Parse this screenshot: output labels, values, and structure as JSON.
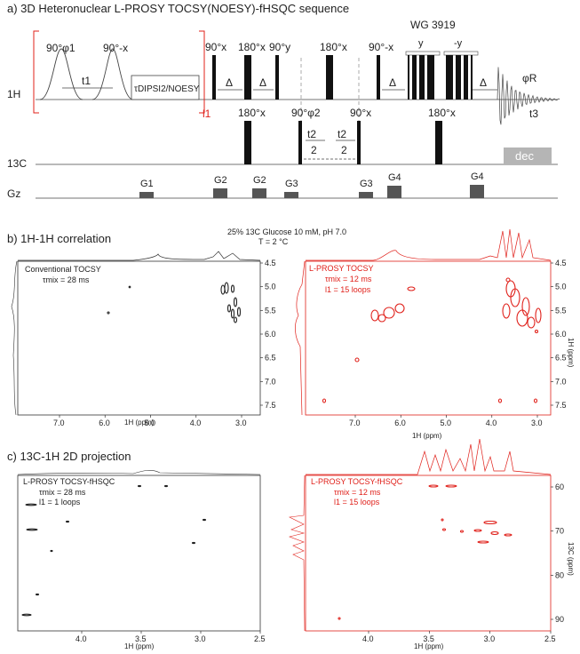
{
  "panel_a": {
    "title": "a) 3D Heteronuclear L-PROSY TOCSY(NOESY)-fHSQC sequence",
    "channels": {
      "h": "1H",
      "c": "13C",
      "g": "Gz"
    },
    "pulses_h": [
      "90°φ1",
      "90°-x",
      "90°x",
      "180°x",
      "90°y",
      "180°x",
      "90°-x"
    ],
    "t1": "t1",
    "tau_box": "τDIPSI2/NOESY",
    "delta": "Δ",
    "l1": "l1",
    "wg": "WG 3919",
    "wg_y": "y",
    "wg_minus_y": "-y",
    "phi_r": "φR",
    "t3": "t3",
    "pulses_c": [
      "180°x",
      "90°φ2",
      "90°x",
      "180°x"
    ],
    "t2": "t2",
    "two": "2",
    "dec": "dec",
    "gradients": [
      "G1",
      "G2",
      "G2",
      "G3",
      "G3",
      "G4",
      "G4"
    ]
  },
  "panel_b": {
    "title": "b) 1H-1H correlation",
    "condition_1": "25% 13C Glucose 10 mM, pH 7.0",
    "condition_2": "T = 2 °C",
    "left_label": "Conventional TOCSY",
    "left_tau": "τmix = 28 ms",
    "right_label": "L-PROSY TOCSY",
    "right_tau": "τmix = 12 ms",
    "right_loops": "l1 = 15 loops",
    "x_ticks_left": [
      "7.0",
      "6.0",
      "5.0",
      "4.0",
      "3.0"
    ],
    "x_ticks_right": [
      "7.0",
      "6.0",
      "5.0",
      "4.0",
      "3.0"
    ],
    "x_label": "1H (ppm)",
    "y_ticks": [
      "4.5",
      "5.0",
      "5.5",
      "6.0",
      "6.5",
      "7.0",
      "7.5"
    ],
    "y_label": "1H (ppm)"
  },
  "panel_c": {
    "title": "c) 13C-1H 2D projection",
    "left_label": "L-PROSY TOCSY-fHSQC",
    "left_tau": "τmix = 28 ms",
    "left_loops": "l1 = 1 loops",
    "right_label": "L-PROSY TOCSY-fHSQC",
    "right_tau": "τmix = 12 ms",
    "right_loops": "l1 = 15 loops",
    "x_ticks": [
      "4.0",
      "3.5",
      "3.0",
      "2.5"
    ],
    "x_label": "1H (ppm)",
    "y_ticks": [
      "60",
      "70",
      "80",
      "90"
    ],
    "y_label": "13C (ppm)"
  }
}
